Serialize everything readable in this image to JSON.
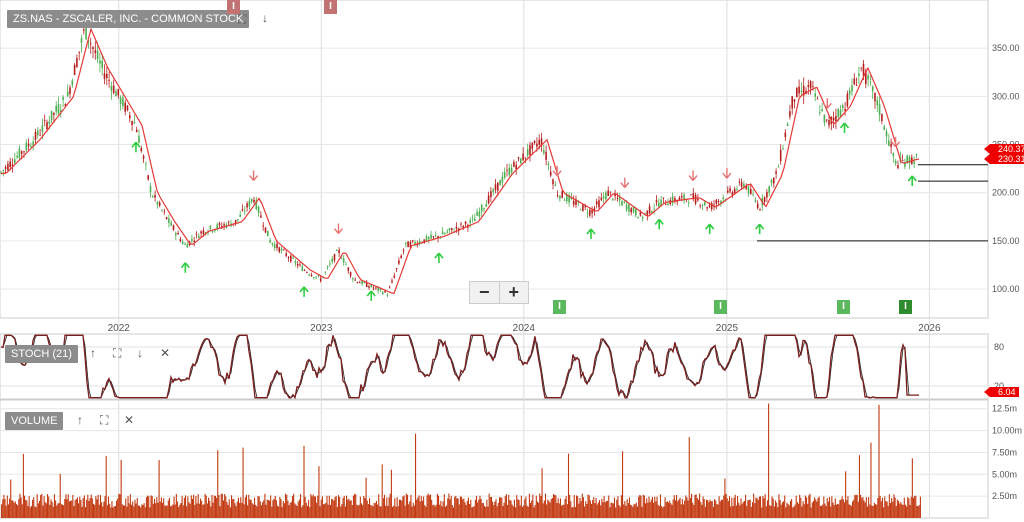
{
  "chart_data": [
    {
      "type": "line",
      "name": "price",
      "title": "ZS.NAS - ZSCALER, INC. - COMMON STOCK",
      "x": [
        "2021-06",
        "2021-08",
        "2021-10",
        "2021-11",
        "2021-12",
        "2022-02",
        "2022-03",
        "2022-04",
        "2022-05",
        "2022-06",
        "2022-08",
        "2022-09",
        "2022-10",
        "2022-12",
        "2023-01",
        "2023-02",
        "2023-03",
        "2023-05",
        "2023-06",
        "2023-08",
        "2023-10",
        "2023-12",
        "2024-02",
        "2024-03",
        "2024-05",
        "2024-06",
        "2024-08",
        "2024-09",
        "2024-11",
        "2024-12",
        "2025-02",
        "2025-03",
        "2025-04",
        "2025-05",
        "2025-06",
        "2025-07",
        "2025-08",
        "2025-09",
        "2025-10",
        "2025-11",
        "2025-12"
      ],
      "y": [
        220,
        255,
        300,
        370,
        330,
        270,
        200,
        170,
        145,
        160,
        170,
        195,
        150,
        120,
        110,
        140,
        110,
        95,
        145,
        155,
        170,
        220,
        255,
        200,
        180,
        200,
        175,
        190,
        195,
        185,
        210,
        185,
        220,
        300,
        310,
        270,
        290,
        330,
        290,
        230,
        235
      ],
      "y_ticks": [
        "350.00",
        "300.00",
        "250.00",
        "200.00",
        "150.00",
        "100.00"
      ],
      "x_ticks": [
        "2022",
        "2023",
        "2024",
        "2025",
        "2026"
      ],
      "ylim": [
        70,
        400
      ],
      "last_price_tags": [
        "240.37",
        "230.31"
      ],
      "horizontal_levels": [
        229,
        212,
        150
      ],
      "up_signal_dates": [
        "2022-02",
        "2022-05",
        "2022-12",
        "2023-04",
        "2023-08",
        "2024-05",
        "2024-09",
        "2024-12",
        "2025-03",
        "2025-08",
        "2025-12"
      ],
      "down_signal_dates": [
        "2022-09",
        "2023-02",
        "2024-03",
        "2024-07",
        "2024-11",
        "2025-01",
        "2025-07",
        "2025-11"
      ],
      "markers": [
        "I",
        "I",
        "I",
        "I",
        "I",
        "I"
      ]
    },
    {
      "type": "line",
      "name": "stoch",
      "title": "STOCH (21)",
      "y_ticks": [
        "80",
        "20"
      ],
      "ylim": [
        0,
        100
      ],
      "last_value": "6.04"
    },
    {
      "type": "bar",
      "name": "volume",
      "title": "VOLUME",
      "y_ticks": [
        "12.5m",
        "10.00m",
        "7.50m",
        "5.00m",
        "2.50m"
      ],
      "ylim": [
        0,
        13500000
      ]
    }
  ],
  "controls": {
    "zoom_out": "−",
    "zoom_in": "+",
    "expand_icon": "⛶",
    "up_icon": "↑",
    "down_icon": "↓",
    "close_icon": "✕"
  },
  "colors": {
    "candle_up": "#4caf50",
    "candle_down": "#b71c1c",
    "ma_line": "#e53935",
    "stoch_line": "#7a1f1f",
    "volume": "#c23a12",
    "up_arrow": "#2ecc40",
    "down_arrow": "#e57373",
    "marker_green": "#5cb85c",
    "marker_red": "#c27272"
  }
}
